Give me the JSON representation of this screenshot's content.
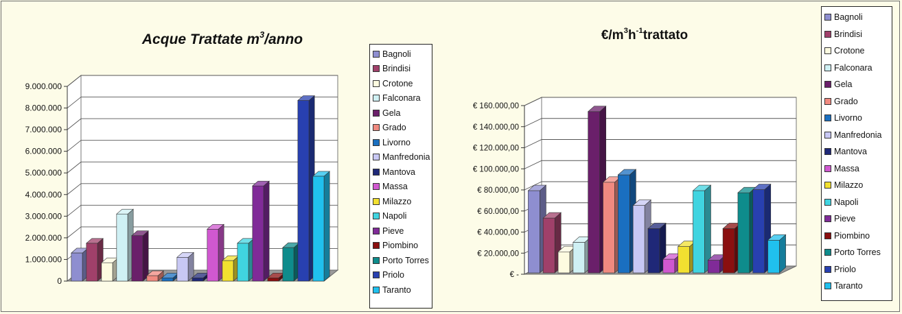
{
  "categories": [
    "Bagnoli",
    "Brindisi",
    "Crotone",
    "Falconara",
    "Gela",
    "Grado",
    "Livorno",
    "Manfredonia",
    "Mantova",
    "Massa",
    "Milazzo",
    "Napoli",
    "Pieve",
    "Piombino",
    "Porto Torres",
    "Priolo",
    "Taranto"
  ],
  "colors": {
    "Bagnoli": "#8e8ed0",
    "Brindisi": "#a0406a",
    "Crotone": "#fdfbe0",
    "Falconara": "#cff0f4",
    "Gela": "#6a1f6a",
    "Grado": "#f08a80",
    "Livorno": "#1a6fc0",
    "Manfredonia": "#c8c8f4",
    "Mantova": "#1f2878",
    "Massa": "#d058d0",
    "Milazzo": "#f2e030",
    "Napoli": "#40d4e0",
    "Pieve": "#802b98",
    "Piombino": "#8a0f0f",
    "Porto Torres": "#0e8c8c",
    "Priolo": "#2840b0",
    "Taranto": "#20c0ee"
  },
  "chart_data": [
    {
      "type": "bar",
      "title_main": "Acque Trattate m",
      "title_sup": "3",
      "title_tail": "/anno",
      "categories": [
        "Bagnoli",
        "Brindisi",
        "Crotone",
        "Falconara",
        "Gela",
        "Grado",
        "Livorno",
        "Manfredonia",
        "Mantova",
        "Massa",
        "Milazzo",
        "Napoli",
        "Pieve",
        "Piombino",
        "Porto Torres",
        "Priolo",
        "Taranto"
      ],
      "values": [
        1300000,
        1750000,
        850000,
        3100000,
        2100000,
        250000,
        150000,
        1100000,
        150000,
        2400000,
        950000,
        1750000,
        4400000,
        150000,
        1550000,
        8350000,
        4850000
      ],
      "ylim": [
        0,
        9000000
      ],
      "yticks": [
        "9.000.000",
        "8.000.000",
        "7.000.000",
        "6.000.000",
        "5.000.000",
        "4.000.000",
        "3.000.000",
        "2.000.000",
        "1.000.000",
        "0"
      ],
      "legend": [
        "Bagnoli",
        "Brindisi",
        "Crotone",
        "Falconara",
        "Gela",
        "Grado",
        "Livorno",
        "Manfredonia",
        "Mantova",
        "Massa",
        "Milazzo",
        "Napoli",
        "Pieve",
        "Piombino",
        "Porto Torres",
        "Priolo",
        "Taranto"
      ],
      "legend_placement": "right",
      "grid": true
    },
    {
      "type": "bar",
      "title_main": "€/m",
      "title_sup": "3",
      "title_mid": " h",
      "title_sup2": "-1",
      "title_tail": " trattato",
      "categories": [
        "Bagnoli",
        "Brindisi",
        "Crotone",
        "Falconara",
        "Gela",
        "Grado",
        "Livorno",
        "Manfredonia",
        "Mantova",
        "Massa",
        "Milazzo",
        "Napoli",
        "Pieve",
        "Piombino",
        "Porto Torres",
        "Priolo",
        "Taranto"
      ],
      "values": [
        78000,
        52000,
        20000,
        29000,
        153000,
        86000,
        93000,
        64000,
        42000,
        13000,
        25000,
        78000,
        12000,
        42000,
        76000,
        79000,
        31000
      ],
      "ylim": [
        0,
        160000
      ],
      "yticks": [
        "€ 160.000,00",
        "€ 140.000,00",
        "€ 120.000,00",
        "€ 100.000,00",
        "€ 80.000,00",
        "€ 60.000,00",
        "€ 40.000,00",
        "€ 20.000,00",
        "€ -"
      ],
      "legend": [
        "Bagnoli",
        "Brindisi",
        "Crotone",
        "Falconara",
        "Gela",
        "Grado",
        "Livorno",
        "Manfredonia",
        "Mantova",
        "Massa",
        "Milazzo",
        "Napoli",
        "Pieve",
        "Piombino",
        "Porto Torres",
        "Priolo",
        "Taranto"
      ],
      "legend_placement": "right",
      "grid": true
    }
  ]
}
